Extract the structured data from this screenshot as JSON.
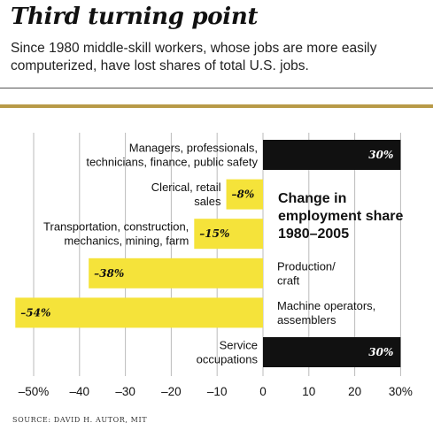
{
  "title": "Third turning point",
  "subtitle": "Since 1980 middle-skill workers, whose jobs are more easily computerized, have lost shares of total U.S. jobs.",
  "source": "SOURCE: DAVID H. AUTOR, MIT",
  "colors": {
    "positive": "#111111",
    "negative": "#f5e33a",
    "grid": "#bbbbbb",
    "rule": "#b89a47"
  },
  "chart_data": {
    "type": "bar",
    "orientation": "horizontal",
    "title": "Change in employment share 1980–2005",
    "title_lines": [
      "Change in",
      "employment share",
      "1980–2005"
    ],
    "categories": [
      "Managers, professionals, technicians, finance, public safety",
      "Clerical, retail sales",
      "Transportation, construction, mechanics, mining, farm",
      "Production/ craft",
      "Machine operators, assemblers",
      "Service occupations"
    ],
    "category_lines": [
      [
        "Managers, professionals,",
        "technicians, finance, public safety"
      ],
      [
        "Clerical, retail",
        "sales"
      ],
      [
        "Transportation, construction,",
        "mechanics, mining, farm"
      ],
      [
        "Production/",
        "craft"
      ],
      [
        "Machine operators,",
        "assemblers"
      ],
      [
        "Service",
        "occupations"
      ]
    ],
    "values": [
      30,
      -8,
      -15,
      -38,
      -54,
      30
    ],
    "value_labels": [
      "30%",
      "–8%",
      "–15%",
      "–38%",
      "–54%",
      "30%"
    ],
    "xlim": [
      -54,
      30
    ],
    "xticks": [
      -50,
      -40,
      -30,
      -20,
      -10,
      0,
      10,
      20,
      30
    ],
    "xtick_labels": [
      "–50%",
      "–40",
      "–30",
      "–20",
      "–10",
      "0",
      "10",
      "20",
      "30%"
    ],
    "grid": true,
    "legend": "none"
  }
}
